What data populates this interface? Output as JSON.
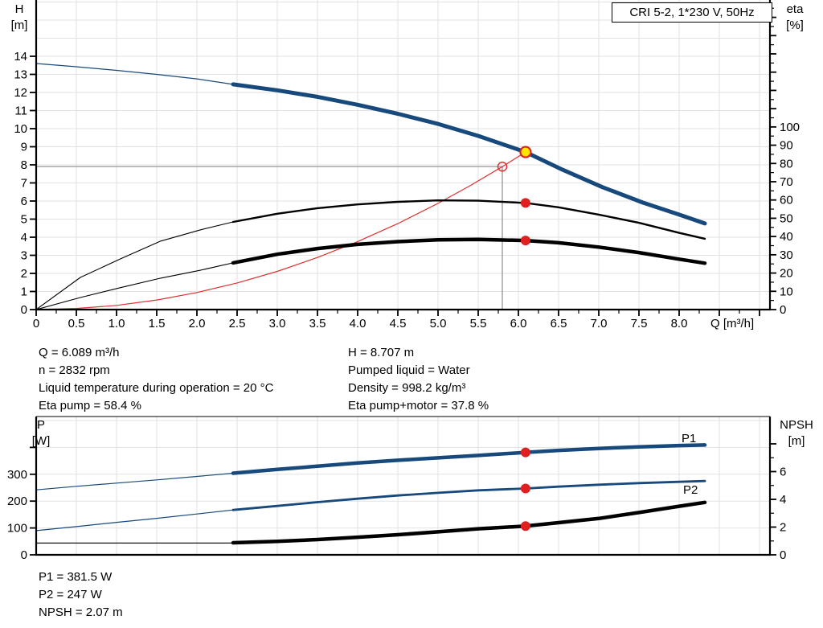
{
  "title_box": {
    "label": "CRI 5-2, 1*230 V, 50Hz"
  },
  "top_chart": {
    "y_left_label": "H",
    "y_left_unit": "[m]",
    "y_right_label": "eta",
    "y_right_unit": "[%]",
    "x_axis_label": "Q [m³/h]"
  },
  "bottom_chart": {
    "y_left_label": "P",
    "y_left_unit": "[W]",
    "y_right_label": "NPSH",
    "y_right_unit": "[m]"
  },
  "info_top": {
    "left": [
      "Q = 6.089 m³/h",
      "n = 2832 rpm",
      "Liquid temperature during operation = 20 °C",
      "Eta pump = 58.4 %"
    ],
    "right": [
      "H = 8.707 m",
      "Pumped liquid = Water",
      "Density = 998.2 kg/m³",
      "Eta pump+motor = 37.8 %"
    ]
  },
  "info_bottom": [
    "P1 = 381.5 W",
    "P2 = 247 W",
    "NPSH = 2.07 m"
  ],
  "colors": {
    "curve_blue": "#17497C",
    "curve_black": "#000000",
    "curve_red": "#e03030",
    "dot_red": "#e02020",
    "duty_yellow": "#ffe600",
    "crosshair_gray": "#8c8c8c",
    "grid_gray": "#e2e2e2"
  },
  "chart_data": [
    {
      "type": "line",
      "title": "CRI 5-2, 1*230 V, 50Hz",
      "xlabel": "Q [m³/h]",
      "ylabel_left": "H [m]",
      "ylabel_right": "eta [%]",
      "x_range": [
        0,
        9.13
      ],
      "left_range": [
        0,
        17.11
      ],
      "right_range": [
        0,
        169.5
      ],
      "x_ticks": {
        "step": 0.5,
        "minor_step": 0.25,
        "max": 9,
        "label_max": 8,
        "decimals": 1
      },
      "left_ticks": {
        "step": 1,
        "max": 14,
        "label_max": 14,
        "decimals": 0
      },
      "right_ticks": {
        "step": 10,
        "minor_step": 5,
        "max": 165,
        "label_max": 100,
        "decimals": 0
      },
      "grid": {
        "x_step": 0.5,
        "left_step": 1
      },
      "border_top": false,
      "series": [
        {
          "name": "requested-duty-crosshair",
          "axis": "left",
          "color": "#8c8c8c",
          "width": 1.2,
          "points": [
            [
              0,
              7.9
            ],
            [
              5.8,
              7.9
            ],
            [
              5.8,
              0
            ]
          ]
        },
        {
          "name": "pump-curve-extension",
          "axis": "left",
          "color": "#17497C",
          "width": 1.2,
          "points": [
            [
              0,
              13.6
            ],
            [
              0.5,
              13.42
            ],
            [
              1,
              13.22
            ],
            [
              1.5,
              13.0
            ],
            [
              2,
              12.75
            ],
            [
              2.45,
              12.45
            ]
          ]
        },
        {
          "name": "eta-pump-curve-extension",
          "axis": "right",
          "color": "#000000",
          "width": 1.1,
          "points": [
            [
              0,
              0
            ],
            [
              0.55,
              17.6
            ],
            [
              1.05,
              27.8
            ],
            [
              1.55,
              37.5
            ],
            [
              2.05,
              43.7
            ],
            [
              2.45,
              48
            ]
          ]
        },
        {
          "name": "eta-pump-motor-curve-extension",
          "axis": "right",
          "color": "#000000",
          "width": 1.1,
          "points": [
            [
              0,
              0
            ],
            [
              0.55,
              6.6
            ],
            [
              1.05,
              12.0
            ],
            [
              1.55,
              17.2
            ],
            [
              2.05,
              21.6
            ],
            [
              2.45,
              25.6
            ]
          ]
        },
        {
          "name": "system-curve",
          "axis": "left",
          "color": "#e03030",
          "width": 1.2,
          "points": [
            [
              0,
              0
            ],
            [
              0.5,
              0.06
            ],
            [
              1,
              0.23
            ],
            [
              1.5,
              0.53
            ],
            [
              2,
              0.94
            ],
            [
              2.5,
              1.47
            ],
            [
              3,
              2.11
            ],
            [
              3.5,
              2.88
            ],
            [
              4,
              3.76
            ],
            [
              4.5,
              4.75
            ],
            [
              5,
              5.87
            ],
            [
              5.4,
              6.85
            ],
            [
              5.8,
              7.9
            ],
            [
              6.089,
              8.707
            ]
          ]
        },
        {
          "name": "eta-pump-curve",
          "axis": "right",
          "color": "#000000",
          "width": 2.4,
          "points": [
            [
              2.45,
              48
            ],
            [
              3,
              52.5
            ],
            [
              3.5,
              55.5
            ],
            [
              4,
              57.6
            ],
            [
              4.5,
              59.0
            ],
            [
              5,
              59.8
            ],
            [
              5.5,
              59.6
            ],
            [
              6.089,
              58.4
            ],
            [
              6.5,
              56.0
            ],
            [
              7,
              52.0
            ],
            [
              7.5,
              47.5
            ],
            [
              8,
              42.0
            ],
            [
              8.32,
              38.8
            ]
          ]
        },
        {
          "name": "eta-pump-motor-curve",
          "axis": "right",
          "color": "#000000",
          "width": 4.5,
          "points": [
            [
              2.45,
              25.6
            ],
            [
              3,
              30.3
            ],
            [
              3.5,
              33.4
            ],
            [
              4,
              35.7
            ],
            [
              4.5,
              37.2
            ],
            [
              5,
              38.2
            ],
            [
              5.5,
              38.4
            ],
            [
              6.089,
              37.8
            ],
            [
              6.5,
              36.6
            ],
            [
              7,
              34.2
            ],
            [
              7.5,
              31.2
            ],
            [
              8,
              27.6
            ],
            [
              8.32,
              25.4
            ]
          ]
        },
        {
          "name": "pump-curve",
          "axis": "left",
          "color": "#17497C",
          "width": 5,
          "points": [
            [
              2.45,
              12.45
            ],
            [
              3,
              12.12
            ],
            [
              3.5,
              11.76
            ],
            [
              4,
              11.32
            ],
            [
              4.5,
              10.82
            ],
            [
              5,
              10.26
            ],
            [
              5.5,
              9.6
            ],
            [
              6.089,
              8.707
            ],
            [
              6.55,
              7.73
            ],
            [
              7.05,
              6.76
            ],
            [
              7.55,
              5.91
            ],
            [
              8,
              5.25
            ],
            [
              8.32,
              4.76
            ]
          ]
        }
      ],
      "markers": [
        {
          "name": "requested-duty-point",
          "shape": "open-circle",
          "axis": "left",
          "q": 5.8,
          "v": 7.9,
          "color": "#e03030"
        },
        {
          "name": "eta-pump-duty-dot",
          "shape": "dot",
          "axis": "right",
          "q": 6.089,
          "v": 58.4,
          "color": "#e02020"
        },
        {
          "name": "eta-pump-motor-duty-dot",
          "shape": "dot",
          "axis": "right",
          "q": 6.089,
          "v": 37.8,
          "color": "#e02020"
        },
        {
          "name": "duty-point",
          "shape": "duty",
          "axis": "left",
          "q": 6.089,
          "v": 8.707,
          "color": "#ffe600",
          "ring": "#e02020"
        }
      ],
      "labels": []
    },
    {
      "type": "line",
      "title": "",
      "ylabel_left": "P [W]",
      "ylabel_right": "NPSH [m]",
      "x_range": [
        0,
        9.13
      ],
      "left_range": [
        0,
        515
      ],
      "right_range": [
        0,
        9.97
      ],
      "x_ticks": null,
      "left_ticks": {
        "step": 100,
        "max": 400,
        "label_max": 300,
        "decimals": 0
      },
      "right_ticks": {
        "step": 2,
        "minor_step": 1,
        "max": 8,
        "label_max": 6,
        "decimals": 0
      },
      "grid": {
        "x_step": 0.5,
        "left_step": 100
      },
      "border_top": true,
      "series": [
        {
          "name": "p1-curve-extension",
          "axis": "left",
          "color": "#17497C",
          "width": 1.2,
          "points": [
            [
              0,
              242
            ],
            [
              0.5,
              255
            ],
            [
              1,
              267
            ],
            [
              1.5,
              279
            ],
            [
              2,
              292
            ],
            [
              2.45,
              304
            ]
          ]
        },
        {
          "name": "p2-curve-extension",
          "axis": "left",
          "color": "#17497C",
          "width": 1.2,
          "points": [
            [
              0,
              90
            ],
            [
              0.5,
              105
            ],
            [
              1,
              121
            ],
            [
              1.5,
              136
            ],
            [
              2,
              152
            ],
            [
              2.45,
              167
            ]
          ]
        },
        {
          "name": "npsh-curve-extension",
          "axis": "right",
          "color": "#000000",
          "width": 1.2,
          "points": [
            [
              0,
              0.85
            ],
            [
              2.45,
              0.85
            ]
          ]
        },
        {
          "name": "p2-curve",
          "axis": "left",
          "color": "#17497C",
          "width": 2.8,
          "points": [
            [
              2.45,
              167
            ],
            [
              3,
              182
            ],
            [
              3.5,
              196
            ],
            [
              4,
              209
            ],
            [
              4.5,
              221
            ],
            [
              5,
              231
            ],
            [
              5.5,
              240
            ],
            [
              6.089,
              247
            ],
            [
              6.5,
              254
            ],
            [
              7,
              261
            ],
            [
              7.5,
              267
            ],
            [
              8,
              272
            ],
            [
              8.32,
              275
            ]
          ]
        },
        {
          "name": "p1-curve",
          "axis": "left",
          "color": "#17497C",
          "width": 4.5,
          "points": [
            [
              2.45,
              304
            ],
            [
              3,
              318
            ],
            [
              3.5,
              330
            ],
            [
              4,
              342
            ],
            [
              4.5,
              352
            ],
            [
              5,
              361
            ],
            [
              5.5,
              370
            ],
            [
              6.089,
              381.5
            ],
            [
              6.5,
              389
            ],
            [
              7,
              396
            ],
            [
              7.5,
              402
            ],
            [
              8,
              407
            ],
            [
              8.32,
              409
            ]
          ]
        },
        {
          "name": "npsh-curve",
          "axis": "right",
          "color": "#000000",
          "width": 4.5,
          "points": [
            [
              2.45,
              0.87
            ],
            [
              3,
              0.97
            ],
            [
              3.5,
              1.1
            ],
            [
              4,
              1.27
            ],
            [
              4.5,
              1.45
            ],
            [
              5,
              1.66
            ],
            [
              5.5,
              1.88
            ],
            [
              6.089,
              2.07
            ],
            [
              6.5,
              2.32
            ],
            [
              7,
              2.62
            ],
            [
              7.5,
              3.05
            ],
            [
              8,
              3.5
            ],
            [
              8.32,
              3.78
            ]
          ]
        }
      ],
      "markers": [
        {
          "name": "p1-duty-dot",
          "shape": "dot",
          "axis": "left",
          "q": 6.089,
          "v": 381.5,
          "color": "#e02020"
        },
        {
          "name": "p2-duty-dot",
          "shape": "dot",
          "axis": "left",
          "q": 6.089,
          "v": 247,
          "color": "#e02020"
        },
        {
          "name": "npsh-duty-dot",
          "shape": "dot",
          "axis": "right",
          "q": 6.089,
          "v": 2.07,
          "color": "#e02020"
        }
      ],
      "labels": [
        {
          "name": "p1-curve-label",
          "text": "P1",
          "axis": "left",
          "q": 8.03,
          "v": 419,
          "color": "#17497C"
        },
        {
          "name": "p2-curve-label",
          "text": "P2",
          "axis": "left",
          "q": 8.05,
          "v": 228,
          "color": "#17497C"
        }
      ]
    }
  ]
}
